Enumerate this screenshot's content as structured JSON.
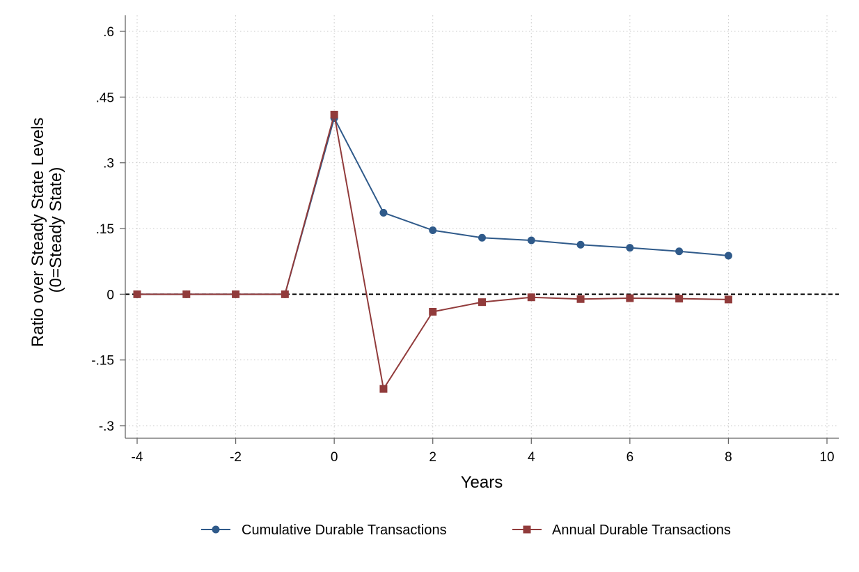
{
  "chart_data": {
    "type": "line",
    "xlabel": "Years",
    "ylabel_lines": [
      "Ratio over Steady State Levels",
      "(0=Steady State)"
    ],
    "xlim": [
      -4,
      10
    ],
    "ylim": [
      -0.3,
      0.6
    ],
    "x_ticks": [
      -4,
      -2,
      0,
      2,
      4,
      6,
      8,
      10
    ],
    "x_tick_labels": [
      "-4",
      "-2",
      "0",
      "2",
      "4",
      "6",
      "8",
      "10"
    ],
    "y_ticks": [
      -0.3,
      -0.15,
      0,
      0.15,
      0.3,
      0.45,
      0.6
    ],
    "y_tick_labels": [
      "-.3",
      "-.15",
      "0",
      ".15",
      ".3",
      ".45",
      ".6"
    ],
    "grid": true,
    "reference_line": {
      "y": 0,
      "style": "dashed"
    },
    "legend_position": "bottom",
    "series": [
      {
        "name": "Cumulative Durable Transactions",
        "color": "#2f5a8a",
        "marker": "circle",
        "x": [
          -4,
          -3,
          -2,
          -1,
          0,
          1,
          2,
          3,
          4,
          5,
          6,
          7,
          8
        ],
        "y": [
          0,
          0,
          0,
          0,
          0.402,
          0.186,
          0.146,
          0.129,
          0.123,
          0.113,
          0.106,
          0.098,
          0.088
        ]
      },
      {
        "name": "Annual Durable Transactions",
        "color": "#913b3b",
        "marker": "square",
        "x": [
          -4,
          -3,
          -2,
          -1,
          0,
          1,
          2,
          3,
          4,
          5,
          6,
          7,
          8
        ],
        "y": [
          0,
          0,
          0,
          0,
          0.41,
          -0.216,
          -0.04,
          -0.018,
          -0.007,
          -0.011,
          -0.009,
          -0.01,
          -0.012
        ]
      }
    ]
  }
}
